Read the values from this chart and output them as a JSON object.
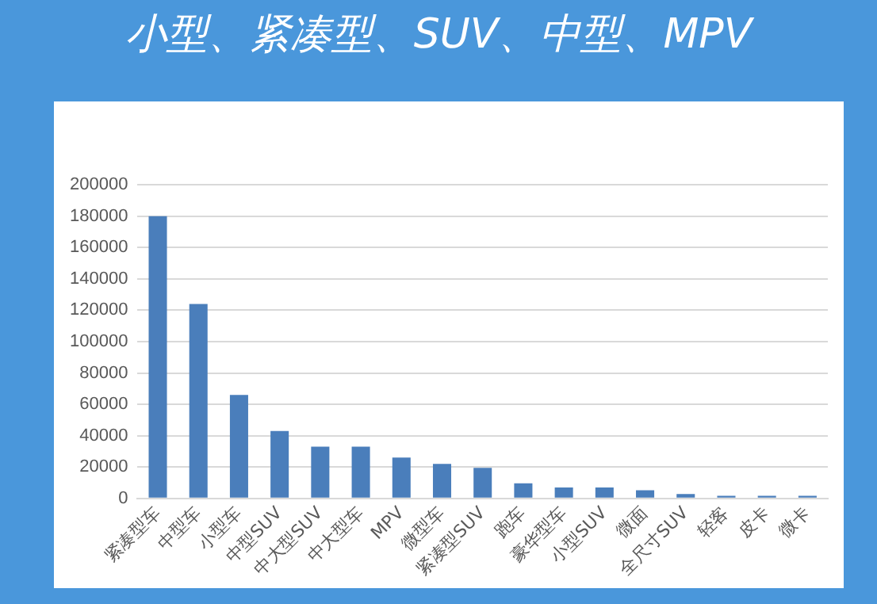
{
  "chart_data": {
    "type": "bar",
    "title": "小型、紧凑型、SUV、中型、MPV",
    "categories": [
      "紧凑型车",
      "中型车",
      "小型车",
      "中型SUV",
      "中大型SUV",
      "中大型车",
      "MPV",
      "微型车",
      "紧凑型SUV",
      "跑车",
      "豪华型车",
      "小型SUV",
      "微面",
      "全尺寸SUV",
      "轻客",
      "皮卡",
      "微卡"
    ],
    "values": [
      180000,
      124000,
      66000,
      43000,
      33000,
      33000,
      26000,
      22000,
      19500,
      9600,
      7000,
      7000,
      5200,
      2800,
      1600,
      1600,
      1600
    ],
    "color": "#4a7ebb",
    "ylim": [
      0,
      200000
    ],
    "yticks": [
      0,
      20000,
      40000,
      60000,
      80000,
      100000,
      120000,
      140000,
      160000,
      180000,
      200000
    ],
    "grid": "y",
    "legend": false
  }
}
